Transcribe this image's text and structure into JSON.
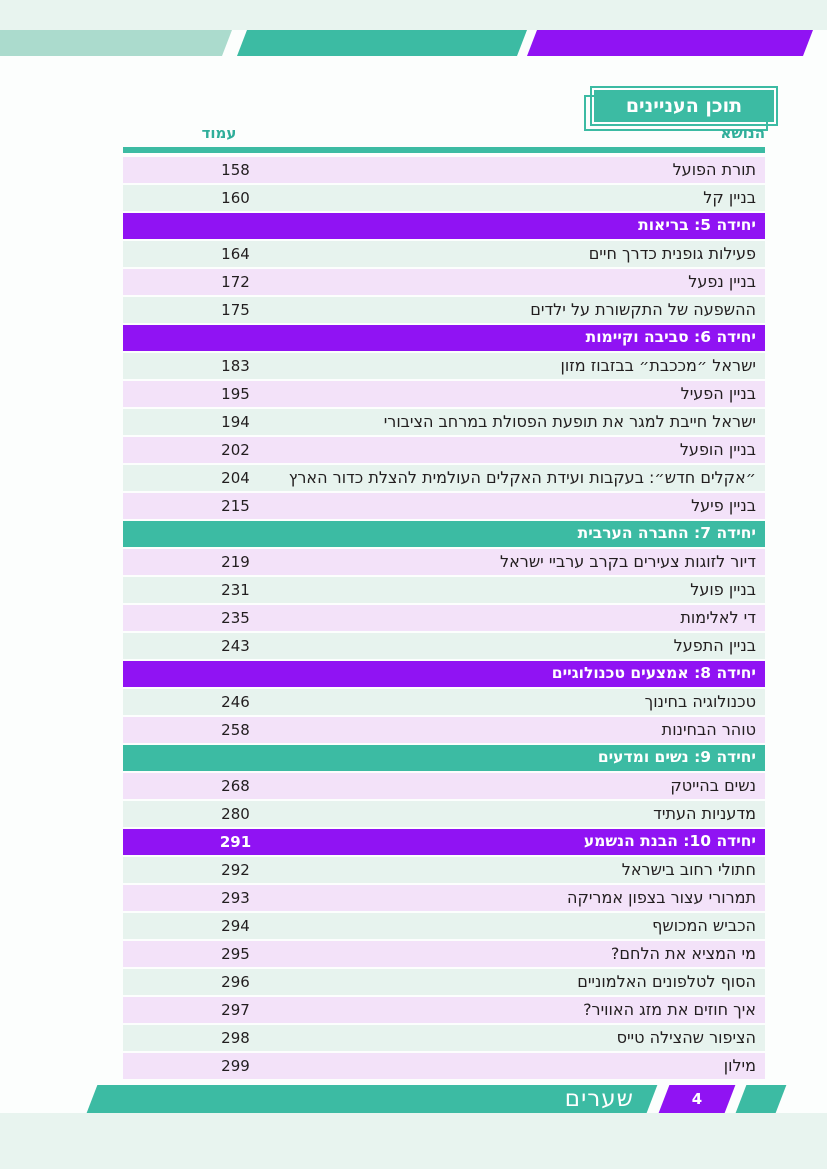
{
  "colors": {
    "teal": "#3cbba3",
    "teal_dark_text": "#2fae9a",
    "purple": "#9013f3",
    "banner_light_teal": "#abdbcd",
    "row_lavender": "#f3e2f9",
    "row_mint": "#e7f3ee",
    "page_background": "#fcfefd",
    "strip_background": "#e8f4ef",
    "text": "#221e1f"
  },
  "header": {
    "title": "תוכן העניינים"
  },
  "table": {
    "columns": {
      "topic": "הנושא",
      "page": "עמוד"
    },
    "rows": [
      {
        "type": "item",
        "title": "תורת הפועל",
        "page": "158",
        "shade": "lavender"
      },
      {
        "type": "item",
        "title": "בניין קל",
        "page": "160",
        "shade": "mint"
      },
      {
        "type": "section",
        "title": "יחידה 5: בריאות",
        "page": "",
        "color": "purple"
      },
      {
        "type": "item",
        "title": "פעילות גופנית כדרך חיים",
        "page": "164",
        "shade": "mint"
      },
      {
        "type": "item",
        "title": "בניין נפעל",
        "page": "172",
        "shade": "lavender"
      },
      {
        "type": "item",
        "title": "ההשפעה של התקשורת על ילדים",
        "page": "175",
        "shade": "mint"
      },
      {
        "type": "section",
        "title": "יחידה 6: סביבה וקיימות",
        "page": "",
        "color": "purple"
      },
      {
        "type": "item",
        "title": "ישראל ״מככבת״ בבזבוז מזון",
        "page": "183",
        "shade": "mint"
      },
      {
        "type": "item",
        "title": "בניין הפעיל",
        "page": "195",
        "shade": "lavender"
      },
      {
        "type": "item",
        "title": "ישראל חייבת למגר את תופעת הפסולת במרחב הציבורי",
        "page": "194",
        "shade": "mint"
      },
      {
        "type": "item",
        "title": "בניין הופעל",
        "page": "202",
        "shade": "lavender"
      },
      {
        "type": "item",
        "title": "״אקלים חדש״: בעקבות ועידת האקלים העולמית להצלת כדור הארץ",
        "page": "204",
        "shade": "mint"
      },
      {
        "type": "item",
        "title": "בניין פיעל",
        "page": "215",
        "shade": "lavender"
      },
      {
        "type": "section",
        "title": "יחידה 7: החברה הערבית",
        "page": "",
        "color": "teal"
      },
      {
        "type": "item",
        "title": "דיור לזוגות צעירים בקרב ערביי ישראל",
        "page": "219",
        "shade": "lavender"
      },
      {
        "type": "item",
        "title": "בניין פועל",
        "page": "231",
        "shade": "mint"
      },
      {
        "type": "item",
        "title": "די לאלימות",
        "page": "235",
        "shade": "lavender"
      },
      {
        "type": "item",
        "title": "בניין התפעל",
        "page": "243",
        "shade": "mint"
      },
      {
        "type": "section",
        "title": "יחידה 8: אמצעים טכנולוגיים",
        "page": "",
        "color": "purple"
      },
      {
        "type": "item",
        "title": "טכנולוגיה בחינוך",
        "page": "246",
        "shade": "mint"
      },
      {
        "type": "item",
        "title": "טוהר הבחינות",
        "page": "258",
        "shade": "lavender"
      },
      {
        "type": "section",
        "title": "יחידה 9: נשים ומדעים",
        "page": "",
        "color": "teal"
      },
      {
        "type": "item",
        "title": "נשים בהייטק",
        "page": "268",
        "shade": "lavender"
      },
      {
        "type": "item",
        "title": "מדעניות העתיד",
        "page": "280",
        "shade": "mint"
      },
      {
        "type": "section",
        "title": "יחידה 10: הבנת הנשמע",
        "page": "291",
        "color": "purple"
      },
      {
        "type": "item",
        "title": "חתולי רחוב בישראל",
        "page": "292",
        "shade": "mint"
      },
      {
        "type": "item",
        "title": "תמרורי עצור בצפון אמריקה",
        "page": "293",
        "shade": "lavender"
      },
      {
        "type": "item",
        "title": "הכביש המכושף",
        "page": "294",
        "shade": "mint"
      },
      {
        "type": "item",
        "title": "מי המציא את הלחם?",
        "page": "295",
        "shade": "lavender"
      },
      {
        "type": "item",
        "title": "הסוף לטלפונים האלמוניים",
        "page": "296",
        "shade": "mint"
      },
      {
        "type": "item",
        "title": "איך חוזים את מזג האוויר?",
        "page": "297",
        "shade": "lavender"
      },
      {
        "type": "item",
        "title": "הציפור שהצילה טייס",
        "page": "298",
        "shade": "mint"
      },
      {
        "type": "item",
        "title": "מילון",
        "page": "299",
        "shade": "lavender"
      }
    ]
  },
  "footer": {
    "section_label": "שערים",
    "page_number": "4"
  }
}
